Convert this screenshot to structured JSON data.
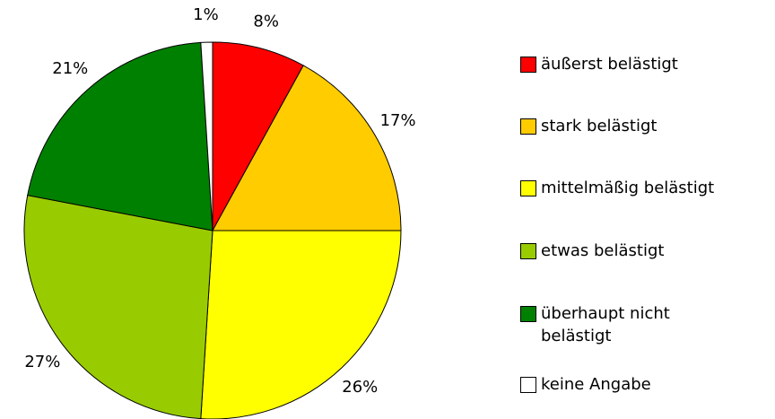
{
  "chart_data": {
    "type": "pie",
    "categories": [
      "äußerst belästigt",
      "stark belästigt",
      "mittelmäßig belästigt",
      "etwas belästigt",
      "überhaupt nicht belästigt",
      "keine Angabe"
    ],
    "values": [
      8,
      17,
      26,
      27,
      21,
      1
    ],
    "value_labels": [
      "8%",
      "17%",
      "26%",
      "27%",
      "21%",
      "1%"
    ],
    "colors": [
      "#ff0000",
      "#ffcc00",
      "#ffff00",
      "#99cc00",
      "#008000",
      "#ffffff"
    ]
  }
}
